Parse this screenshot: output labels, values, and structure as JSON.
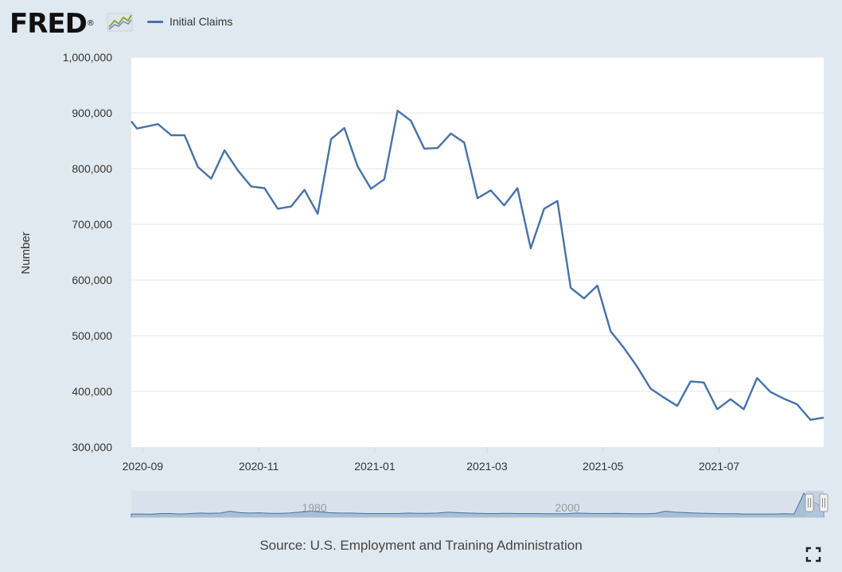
{
  "logo": {
    "text": "FRED",
    "registered": "®"
  },
  "legend": {
    "label": "Initial Claims",
    "color": "#4572a7"
  },
  "source": "Source: U.S. Employment and Training Administration",
  "colors": {
    "background": "#e1e9f0",
    "plot_bg": "#ffffff",
    "series": "#4572a7",
    "grid": "#e6e6e6",
    "navigator_fill": "#a8bfd8",
    "navigator_mask": "#c5d3e3"
  },
  "chart_data": {
    "type": "line",
    "ylabel": "Number",
    "xlabel": "",
    "title": "",
    "ylim": [
      300000,
      1000000
    ],
    "yticks": [
      300000,
      400000,
      500000,
      600000,
      700000,
      800000,
      900000,
      1000000
    ],
    "ytick_labels": [
      "300,000",
      "400,000",
      "500,000",
      "600,000",
      "700,000",
      "800,000",
      "900,000",
      "1,000,000"
    ],
    "xlim_days": [
      -6,
      358
    ],
    "xticks": [
      {
        "label": "2020-09",
        "day": 0
      },
      {
        "label": "2020-11",
        "day": 61
      },
      {
        "label": "2021-01",
        "day": 122
      },
      {
        "label": "2021-03",
        "day": 181
      },
      {
        "label": "2021-05",
        "day": 242
      },
      {
        "label": "2021-07",
        "day": 303
      }
    ],
    "x_origin": "2020-09-01",
    "series": [
      {
        "name": "Initial Claims",
        "days": [
          -6,
          -3,
          8,
          15,
          22,
          29,
          36,
          43,
          50,
          57,
          64,
          71,
          78,
          85,
          92,
          99,
          106,
          113,
          120,
          127,
          134,
          141,
          148,
          155,
          162,
          169,
          176,
          183,
          190,
          197,
          204,
          211,
          218,
          225,
          232,
          239,
          246,
          253,
          260,
          267,
          274,
          281,
          288,
          295,
          302,
          309,
          316,
          323,
          330,
          337,
          344,
          351,
          358
        ],
        "values": [
          885000,
          872000,
          880000,
          860000,
          860000,
          803000,
          782000,
          833000,
          797000,
          768000,
          765000,
          728000,
          732000,
          762000,
          719000,
          853000,
          873000,
          804000,
          764000,
          781000,
          904000,
          886000,
          836000,
          837000,
          863000,
          847000,
          747000,
          761000,
          734000,
          765000,
          657000,
          728000,
          742000,
          586000,
          567000,
          590000,
          508000,
          478000,
          444000,
          405000,
          389000,
          374000,
          418000,
          416000,
          368000,
          386000,
          368000,
          424000,
          399000,
          387000,
          377000,
          349000,
          353000
        ]
      }
    ],
    "navigator": {
      "labels": [
        "1980",
        "2000"
      ],
      "series_values": [
        0.1,
        0.1,
        0.09,
        0.12,
        0.12,
        0.1,
        0.12,
        0.14,
        0.13,
        0.14,
        0.22,
        0.16,
        0.14,
        0.15,
        0.13,
        0.13,
        0.14,
        0.18,
        0.22,
        0.2,
        0.16,
        0.14,
        0.14,
        0.13,
        0.12,
        0.12,
        0.12,
        0.12,
        0.14,
        0.13,
        0.13,
        0.14,
        0.18,
        0.16,
        0.14,
        0.13,
        0.12,
        0.12,
        0.13,
        0.12,
        0.12,
        0.12,
        0.11,
        0.11,
        0.11,
        0.14,
        0.13,
        0.12,
        0.12,
        0.13,
        0.12,
        0.11,
        0.11,
        0.13,
        0.22,
        0.18,
        0.16,
        0.14,
        0.13,
        0.12,
        0.11,
        0.11,
        0.1,
        0.1,
        0.1,
        0.1,
        0.11,
        0.1,
        1.0,
        0.6,
        0.4
      ],
      "selected_fraction": [
        0.975,
        1.0
      ]
    }
  }
}
